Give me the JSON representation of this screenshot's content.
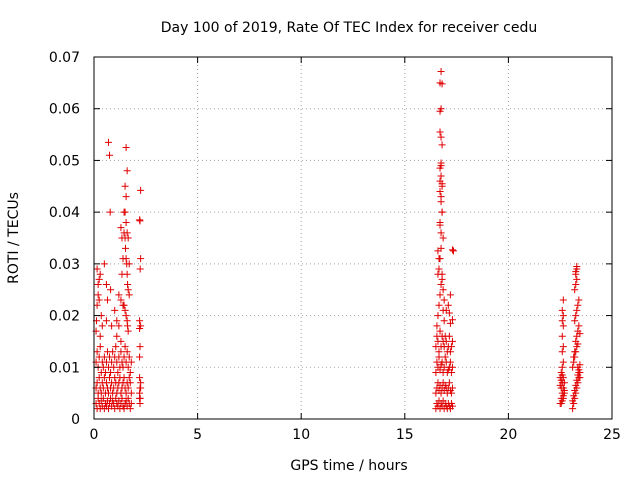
{
  "chart_data": {
    "type": "scatter",
    "title": "Day 100 of 2019, Rate Of TEC Index for receiver cedu",
    "xlabel": "GPS time / hours",
    "ylabel": "ROTI / TECUs",
    "xlim": [
      0,
      25
    ],
    "ylim": [
      0,
      0.07
    ],
    "xticks": [
      0,
      5,
      10,
      15,
      20,
      25
    ],
    "xtick_labels": [
      "0",
      "5",
      "10",
      "15",
      "20",
      "25"
    ],
    "yticks": [
      0,
      0.01,
      0.02,
      0.03,
      0.04,
      0.05,
      0.06,
      0.07
    ],
    "ytick_labels": [
      "0",
      "0.01",
      "0.02",
      "0.03",
      "0.04",
      "0.05",
      "0.06",
      "0.07"
    ],
    "grid": true,
    "marker": "+",
    "color": "#e00000",
    "series": [
      {
        "name": "ROTI",
        "x": [
          0.1,
          0.15,
          0.2,
          0.25,
          0.3,
          0.35,
          0.4,
          0.45,
          0.5,
          0.55,
          0.6,
          0.65,
          0.7,
          0.75,
          0.8,
          0.85,
          0.9,
          0.95,
          1.0,
          1.05,
          1.1,
          1.15,
          1.2,
          1.25,
          1.3,
          1.35,
          1.4,
          1.45,
          1.5,
          1.55,
          1.6,
          1.65,
          1.7,
          1.75,
          1.8,
          0.1,
          0.15,
          0.2,
          0.25,
          0.3,
          0.35,
          0.4,
          0.45,
          0.5,
          0.55,
          0.6,
          0.65,
          0.7,
          0.75,
          0.8,
          0.85,
          0.9,
          0.95,
          1.0,
          1.05,
          1.1,
          1.15,
          1.2,
          1.25,
          1.3,
          1.35,
          1.4,
          1.45,
          1.5,
          1.55,
          1.6,
          1.65,
          1.7,
          1.75,
          1.8,
          0.1,
          0.15,
          0.2,
          0.25,
          0.3,
          0.35,
          0.4,
          0.45,
          0.5,
          0.55,
          0.6,
          0.65,
          0.7,
          0.75,
          0.8,
          0.85,
          0.9,
          0.95,
          1.0,
          1.05,
          1.1,
          1.15,
          1.2,
          1.25,
          1.3,
          1.35,
          1.4,
          1.45,
          1.5,
          1.55,
          1.6,
          1.65,
          1.7,
          1.75,
          1.8,
          0.1,
          0.12,
          0.15,
          0.2,
          0.25,
          0.3,
          0.35,
          0.4,
          0.15,
          0.2,
          0.25,
          0.5,
          0.6,
          0.3,
          0.7,
          0.75,
          0.78,
          0.8,
          0.85,
          0.6,
          0.65,
          1.0,
          1.1,
          1.2,
          1.3,
          1.35,
          1.4,
          1.45,
          1.5,
          1.52,
          1.55,
          1.58,
          1.6,
          1.62,
          1.65,
          1.7,
          1.4,
          1.45,
          1.5,
          1.55,
          1.6,
          1.62,
          1.65,
          1.55,
          1.6,
          1.5,
          1.55,
          1.3,
          1.35,
          1.45,
          1.5,
          1.55,
          1.6,
          1.65,
          1.7,
          1.1,
          1.2,
          1.3,
          2.2,
          2.2,
          2.22,
          2.25,
          2.22,
          2.2,
          2.23,
          2.25,
          2.2,
          2.22,
          2.25,
          2.2,
          2.23,
          2.25,
          2.2,
          2.22,
          2.25,
          2.2,
          16.5,
          16.55,
          16.6,
          16.65,
          16.7,
          16.75,
          16.8,
          16.85,
          16.9,
          16.95,
          17.0,
          17.05,
          17.1,
          17.15,
          17.2,
          17.25,
          17.3,
          16.5,
          16.55,
          16.6,
          16.65,
          16.7,
          16.75,
          16.8,
          16.85,
          16.9,
          16.95,
          17.0,
          17.05,
          17.1,
          17.15,
          17.2,
          17.25,
          17.3,
          16.5,
          16.55,
          16.6,
          16.65,
          16.7,
          16.75,
          16.8,
          16.85,
          16.9,
          16.95,
          17.0,
          17.05,
          17.1,
          17.15,
          17.2,
          17.25,
          17.3,
          16.5,
          16.55,
          16.6,
          16.65,
          16.7,
          16.75,
          16.8,
          16.85,
          16.9,
          16.95,
          17.0,
          17.05,
          17.1,
          17.15,
          17.2,
          17.25,
          17.3,
          16.55,
          16.6,
          16.65,
          16.7,
          16.75,
          16.8,
          16.85,
          16.9,
          17.0,
          17.1,
          17.2,
          16.6,
          16.65,
          16.7,
          16.75,
          16.8,
          16.85,
          16.9,
          16.7,
          16.75,
          16.8,
          16.85,
          16.7,
          16.75,
          16.8,
          16.7,
          16.75,
          16.7,
          16.75,
          16.8,
          16.7,
          16.75,
          16.8,
          16.7,
          16.75,
          16.8,
          16.7,
          16.75,
          16.8,
          16.7,
          16.75,
          16.75,
          16.6,
          16.65,
          17.3,
          17.35,
          17.3,
          17.15,
          17.2,
          22.5,
          22.55,
          22.6,
          22.65,
          22.7,
          22.5,
          22.55,
          22.6,
          22.65,
          22.7,
          22.5,
          22.55,
          22.6,
          22.65,
          22.7,
          22.55,
          22.6,
          22.65,
          22.55,
          22.6,
          22.65,
          22.6,
          22.65,
          22.6,
          22.65,
          22.6,
          22.65,
          22.6,
          22.65,
          23.1,
          23.15,
          23.2,
          23.25,
          23.3,
          23.35,
          23.4,
          23.45,
          23.1,
          23.15,
          23.2,
          23.25,
          23.3,
          23.35,
          23.4,
          23.45,
          23.1,
          23.15,
          23.2,
          23.25,
          23.3,
          23.35,
          23.4,
          23.45,
          23.15,
          23.2,
          23.25,
          23.3,
          23.35,
          23.4,
          23.2,
          23.25,
          23.3,
          23.35,
          23.4,
          23.45,
          23.2,
          23.25,
          23.3,
          23.25,
          23.3,
          23.25,
          23.3,
          23.35
        ],
        "y": [
          0.003,
          0.002,
          0.004,
          0.003,
          0.002,
          0.0035,
          0.0025,
          0.004,
          0.002,
          0.003,
          0.0025,
          0.0035,
          0.002,
          0.003,
          0.004,
          0.0025,
          0.0035,
          0.003,
          0.002,
          0.004,
          0.003,
          0.0025,
          0.0035,
          0.002,
          0.003,
          0.004,
          0.0025,
          0.002,
          0.003,
          0.0035,
          0.0025,
          0.004,
          0.003,
          0.002,
          0.003,
          0.006,
          0.007,
          0.005,
          0.008,
          0.006,
          0.005,
          0.007,
          0.006,
          0.008,
          0.005,
          0.007,
          0.006,
          0.005,
          0.008,
          0.006,
          0.007,
          0.005,
          0.006,
          0.008,
          0.007,
          0.005,
          0.006,
          0.007,
          0.008,
          0.005,
          0.006,
          0.007,
          0.008,
          0.006,
          0.005,
          0.007,
          0.006,
          0.008,
          0.007,
          0.005,
          0.011,
          0.013,
          0.01,
          0.012,
          0.014,
          0.009,
          0.011,
          0.01,
          0.012,
          0.009,
          0.011,
          0.013,
          0.01,
          0.012,
          0.009,
          0.011,
          0.013,
          0.01,
          0.012,
          0.014,
          0.011,
          0.009,
          0.012,
          0.01,
          0.013,
          0.011,
          0.01,
          0.012,
          0.014,
          0.011,
          0.013,
          0.01,
          0.012,
          0.009,
          0.011,
          0.017,
          0.019,
          0.022,
          0.024,
          0.027,
          0.028,
          0.02,
          0.018,
          0.029,
          0.026,
          0.023,
          0.03,
          0.019,
          0.016,
          0.0535,
          0.051,
          0.04,
          0.025,
          0.018,
          0.026,
          0.023,
          0.021,
          0.019,
          0.024,
          0.023,
          0.028,
          0.031,
          0.036,
          0.035,
          0.033,
          0.031,
          0.03,
          0.028,
          0.026,
          0.025,
          0.024,
          0.022,
          0.022,
          0.021,
          0.02,
          0.019,
          0.018,
          0.017,
          0.0525,
          0.048,
          0.045,
          0.043,
          0.037,
          0.035,
          0.04,
          0.04,
          0.038,
          0.036,
          0.035,
          0.03,
          0.016,
          0.018,
          0.015,
          0.004,
          0.005,
          0.006,
          0.007,
          0.003,
          0.008,
          0.004,
          0.006,
          0.012,
          0.014,
          0.018,
          0.019,
          0.029,
          0.031,
          0.0385,
          0.0383,
          0.0442,
          0.0175,
          0.002,
          0.003,
          0.0025,
          0.0035,
          0.002,
          0.003,
          0.0025,
          0.0035,
          0.002,
          0.003,
          0.0025,
          0.002,
          0.003,
          0.0025,
          0.002,
          0.003,
          0.0025,
          0.005,
          0.006,
          0.007,
          0.0055,
          0.0065,
          0.005,
          0.006,
          0.007,
          0.0055,
          0.0065,
          0.006,
          0.005,
          0.006,
          0.007,
          0.0055,
          0.005,
          0.006,
          0.009,
          0.011,
          0.01,
          0.012,
          0.0095,
          0.0105,
          0.011,
          0.009,
          0.01,
          0.012,
          0.011,
          0.009,
          0.0095,
          0.01,
          0.011,
          0.009,
          0.01,
          0.014,
          0.016,
          0.015,
          0.013,
          0.017,
          0.014,
          0.016,
          0.015,
          0.014,
          0.016,
          0.015,
          0.013,
          0.014,
          0.016,
          0.013,
          0.014,
          0.015,
          0.018,
          0.02,
          0.022,
          0.024,
          0.026,
          0.028,
          0.021,
          0.019,
          0.021,
          0.022,
          0.024,
          0.028,
          0.029,
          0.031,
          0.033,
          0.027,
          0.025,
          0.023,
          0.038,
          0.042,
          0.04,
          0.035,
          0.046,
          0.049,
          0.045,
          0.0595,
          0.06,
          0.065,
          0.0672,
          0.0648,
          0.0555,
          0.0545,
          0.053,
          0.044,
          0.043,
          0.04,
          0.0485,
          0.047,
          0.0455,
          0.0375,
          0.036,
          0.0495,
          0.0325,
          0.031,
          0.0327,
          0.0325,
          0.0192,
          0.0205,
          0.0185,
          0.003,
          0.004,
          0.005,
          0.006,
          0.007,
          0.008,
          0.009,
          0.0035,
          0.0045,
          0.0055,
          0.0065,
          0.0075,
          0.0085,
          0.004,
          0.005,
          0.006,
          0.007,
          0.008,
          0.003,
          0.01,
          0.011,
          0.013,
          0.014,
          0.016,
          0.018,
          0.019,
          0.02,
          0.021,
          0.023,
          0.002,
          0.003,
          0.004,
          0.005,
          0.006,
          0.007,
          0.008,
          0.009,
          0.01,
          0.011,
          0.012,
          0.013,
          0.014,
          0.01,
          0.009,
          0.008,
          0.0035,
          0.0045,
          0.0055,
          0.0065,
          0.0075,
          0.0085,
          0.0095,
          0.0105,
          0.012,
          0.013,
          0.015,
          0.016,
          0.017,
          0.018,
          0.019,
          0.02,
          0.021,
          0.022,
          0.023,
          0.0165,
          0.025,
          0.026,
          0.027,
          0.028,
          0.029,
          0.0285,
          0.0295,
          0.0145
        ]
      }
    ]
  }
}
